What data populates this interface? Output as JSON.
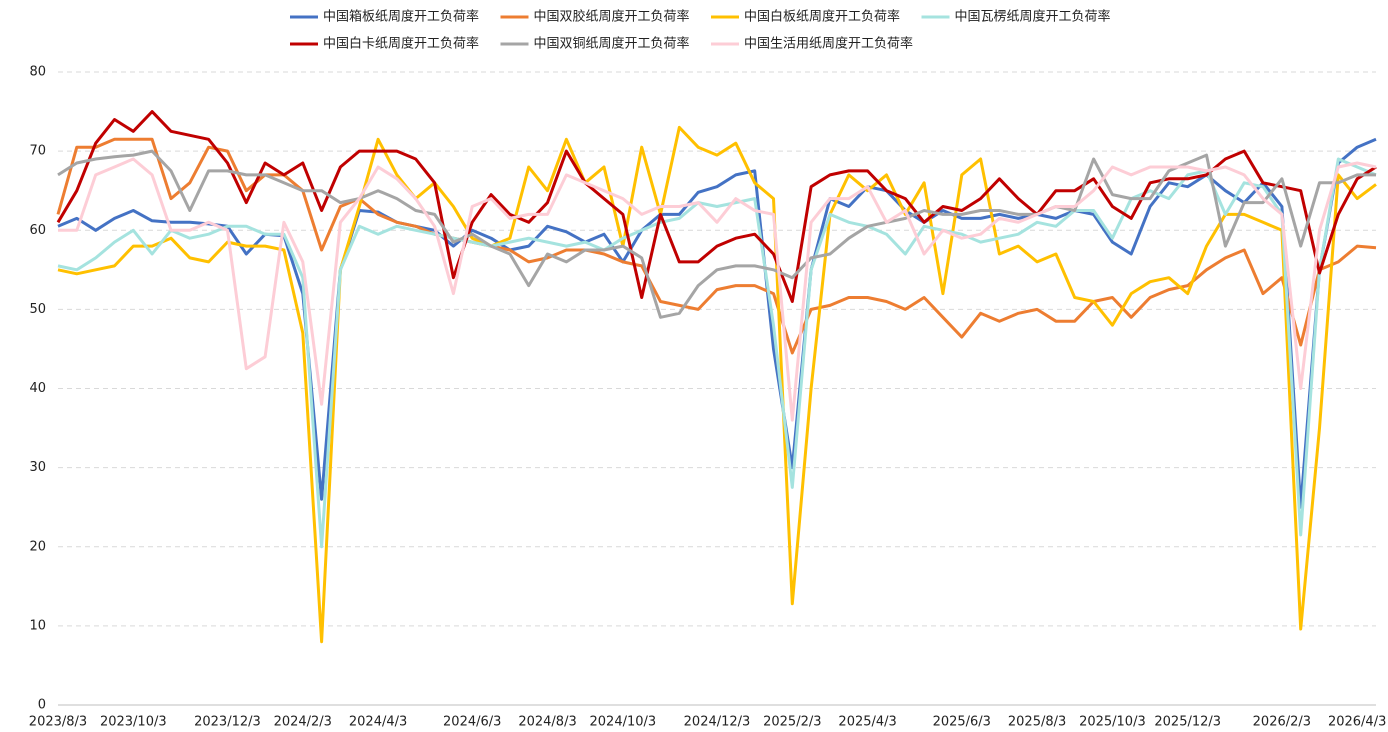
{
  "chart_data": {
    "type": "line",
    "categories": [
      "2023/8/3",
      null,
      null,
      null,
      "2023/10/3",
      null,
      null,
      null,
      null,
      "2023/12/3",
      null,
      null,
      null,
      "2024/2/3",
      null,
      null,
      null,
      "2024/4/3",
      null,
      null,
      null,
      null,
      "2024/6/3",
      null,
      null,
      null,
      "2024/8/3",
      null,
      null,
      null,
      "2024/10/3",
      null,
      null,
      null,
      null,
      "2024/12/3",
      null,
      null,
      null,
      "2025/2/3",
      null,
      null,
      null,
      "2025/4/3",
      null,
      null,
      null,
      null,
      "2025/6/3",
      null,
      null,
      null,
      "2025/8/3",
      null,
      null,
      null,
      "2025/10/3",
      null,
      null,
      null,
      "2025/12/3",
      null,
      null,
      null,
      null,
      "2026/2/3",
      null,
      null,
      null,
      "2026/4/3",
      null
    ],
    "series": [
      {
        "name": "中国箱板纸周度开工负荷率",
        "color": "#4472c4",
        "values": [
          60.5,
          61.5,
          60,
          61.5,
          62.5,
          61.2,
          61,
          61,
          60.8,
          60.5,
          57,
          59.5,
          59.3,
          52,
          26,
          55,
          62.5,
          62.3,
          61,
          60.5,
          60,
          58,
          60,
          59,
          57.5,
          58,
          60.5,
          59.8,
          58.5,
          59.5,
          56,
          60,
          62,
          62,
          64.8,
          65.5,
          67,
          67.5,
          45,
          30,
          55,
          64,
          63,
          65.5,
          65,
          62.5,
          61,
          62.5,
          61.5,
          61.5,
          62,
          61.5,
          62,
          61.5,
          62.5,
          62,
          58.5,
          57,
          63,
          66,
          65.5,
          67,
          65,
          63.5,
          66,
          63,
          25,
          55,
          68.5,
          70.5,
          71.5
        ]
      },
      {
        "name": "中国双胶纸周度开工负荷率",
        "color": "#ed7d31",
        "values": [
          62,
          70.5,
          70.5,
          71.5,
          71.5,
          71.5,
          64,
          66,
          70.5,
          70,
          65,
          67,
          67,
          65,
          57.5,
          63,
          64,
          62,
          61,
          60.5,
          59.5,
          59,
          58.5,
          58,
          57.5,
          56,
          56.5,
          57.5,
          57.5,
          57,
          56,
          55.5,
          51,
          50.5,
          50,
          52.5,
          53,
          53,
          52,
          44.5,
          50,
          50.5,
          51.5,
          51.5,
          51,
          50,
          51.5,
          49,
          46.5,
          49.5,
          48.5,
          49.5,
          50,
          48.5,
          48.5,
          51,
          51.5,
          49,
          51.5,
          52.5,
          53,
          55,
          56.5,
          57.5,
          52,
          54,
          45.5,
          55,
          56,
          58,
          57.8
        ]
      },
      {
        "name": "中国白板纸周度开工负荷率",
        "color": "#ffc000",
        "values": [
          55,
          54.5,
          55,
          55.5,
          58,
          58,
          59,
          56.5,
          56,
          58.5,
          58,
          58,
          57.5,
          47,
          8,
          55,
          63,
          71.5,
          67,
          64,
          66,
          63,
          59,
          58,
          59,
          68,
          65,
          71.5,
          66,
          68,
          58,
          70.5,
          62,
          73,
          70.5,
          69.5,
          71,
          66,
          64,
          12.8,
          40,
          62,
          67,
          65,
          67,
          62,
          66,
          52,
          67,
          69,
          57,
          58,
          56,
          57,
          51.5,
          51,
          48,
          52,
          53.5,
          54,
          52,
          58,
          62,
          62,
          61,
          60,
          9.6,
          35,
          67,
          64,
          65.8
        ]
      },
      {
        "name": "中国瓦楞纸周度开工负荷率",
        "color": "#a5e3df",
        "values": [
          55.5,
          55,
          56.5,
          58.5,
          60,
          57,
          60,
          59,
          59.5,
          60.5,
          60.5,
          59.5,
          59.5,
          54,
          20,
          55,
          60.5,
          59.5,
          60.5,
          60,
          59.5,
          59,
          58.5,
          58,
          58.5,
          59,
          58.5,
          58,
          58.5,
          57.5,
          59,
          60,
          61,
          61.5,
          63.5,
          63,
          63.5,
          64,
          48,
          27.5,
          55,
          62,
          61,
          60.5,
          59.5,
          57,
          60.5,
          60,
          59.5,
          58.5,
          59,
          59.5,
          61,
          60.5,
          62.5,
          62.5,
          59,
          64,
          65,
          64,
          67,
          67.5,
          62,
          66,
          65.5,
          62,
          21.5,
          55,
          69,
          68,
          67
        ]
      },
      {
        "name": "中国白卡纸周度开工负荷率",
        "color": "#c00000",
        "values": [
          61,
          65,
          71,
          74,
          72.5,
          75,
          72.5,
          72,
          71.5,
          68.5,
          63.5,
          68.5,
          67,
          68.5,
          62.5,
          68,
          70,
          70,
          70,
          69,
          66,
          54,
          61,
          64.5,
          62,
          61,
          63.5,
          70,
          66,
          64,
          62,
          51.5,
          62,
          56,
          56,
          58,
          59,
          59.5,
          57,
          51,
          65.5,
          67,
          67.5,
          67.5,
          65,
          64,
          61,
          63,
          62.5,
          64,
          66.5,
          64,
          62,
          65,
          65,
          66.5,
          63,
          61.5,
          66,
          66.5,
          66.5,
          67,
          69,
          70,
          66,
          65.5,
          65,
          54.6,
          62,
          66.5,
          68
        ]
      },
      {
        "name": "中国双铜纸周度开工负荷率",
        "color": "#a5a5a5",
        "values": [
          67,
          68.5,
          69,
          69.3,
          69.5,
          70,
          67.5,
          62.5,
          67.5,
          67.5,
          67,
          67,
          66,
          65,
          65,
          63.5,
          64,
          65,
          64,
          62.5,
          62,
          58.5,
          59.5,
          58,
          57,
          53,
          57,
          56,
          57.5,
          57.5,
          58,
          56.5,
          49,
          49.5,
          53,
          55,
          55.5,
          55.5,
          55,
          54,
          56.5,
          57,
          59,
          60.5,
          61,
          61.5,
          62.5,
          62,
          62,
          62.5,
          62.5,
          62,
          62,
          63,
          62.5,
          69,
          64.5,
          64,
          64,
          67.5,
          68.5,
          69.5,
          58,
          63.5,
          63.5,
          66.5,
          58,
          66,
          66,
          67,
          67
        ]
      },
      {
        "name": "中国生活用纸周度开工负荷率",
        "color": "#fdcdd6",
        "values": [
          60,
          60,
          67,
          68,
          69,
          67,
          60,
          60,
          61,
          60,
          42.5,
          44,
          61,
          56,
          38,
          61,
          64,
          68,
          66.5,
          64,
          60.5,
          52,
          63,
          64,
          61.5,
          62,
          62,
          67,
          66,
          65,
          64,
          62,
          63,
          63,
          63.5,
          61,
          64,
          62.5,
          62,
          36,
          61,
          64,
          64,
          65.5,
          61,
          62.5,
          57,
          60,
          59,
          59.5,
          61.5,
          61,
          62,
          63,
          63,
          65,
          68,
          67,
          68,
          68,
          68,
          67.5,
          68,
          67,
          64,
          62,
          40,
          60,
          68,
          68.5,
          68
        ]
      }
    ],
    "ylim": [
      0,
      80
    ],
    "yticks": [
      0,
      10,
      20,
      30,
      40,
      50,
      60,
      70,
      80
    ],
    "grid": true,
    "legend_position": "top"
  }
}
